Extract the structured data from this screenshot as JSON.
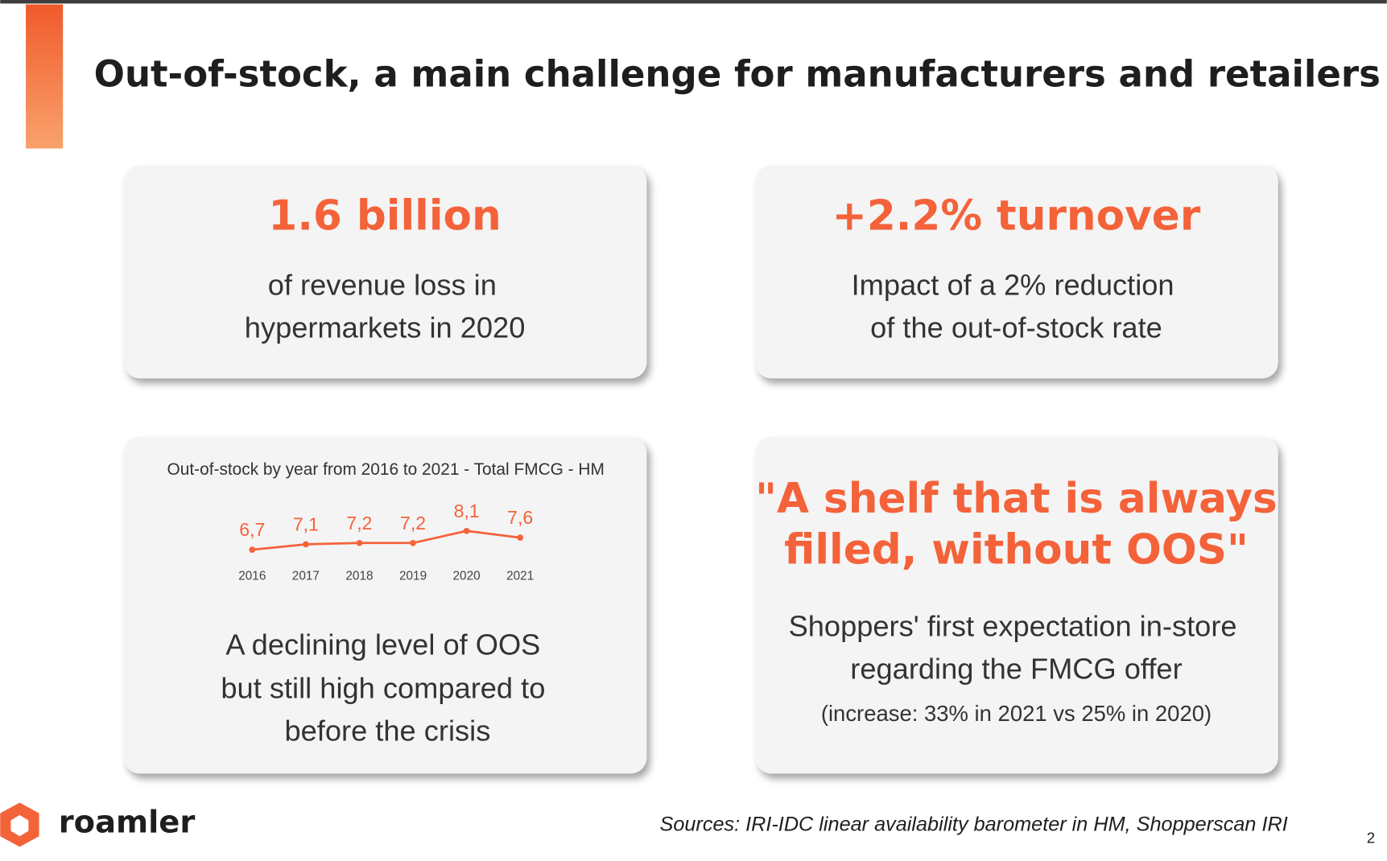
{
  "header": {
    "title": "Out-of-stock, a main challenge for manufacturers and retailers"
  },
  "cards": [
    {
      "headline": "1.6 billion",
      "lines": [
        "of revenue loss in",
        "hypermarkets in 2020"
      ]
    },
    {
      "headline": "+2.2% turnover",
      "lines": [
        "Impact of a 2% reduction",
        "of the out-of-stock rate"
      ]
    },
    {
      "chart_data": {
        "type": "line",
        "title": "Out-of-stock by year from 2016 to 2021 - Total FMCG - HM",
        "categories": [
          "2016",
          "2017",
          "2018",
          "2019",
          "2020",
          "2021"
        ],
        "values": [
          6.7,
          7.1,
          7.2,
          7.2,
          8.1,
          7.6
        ],
        "value_labels": [
          "6,7",
          "7,1",
          "7,2",
          "7,2",
          "8,1",
          "7,6"
        ],
        "color": "#f4623a",
        "ylim": [
          5.5,
          8.8
        ]
      },
      "lines": [
        "A declining level of OOS",
        "but still high compared to",
        "before the crisis"
      ]
    },
    {
      "headline_lines": [
        "\"A shelf that is always",
        "filled, without OOS\""
      ],
      "lines": [
        "Shoppers' first expectation in-store",
        "regarding the FMCG offer"
      ],
      "note": "(increase: 33% in 2021 vs 25% in 2020)"
    }
  ],
  "footer": {
    "logo": "roamler",
    "sources": "Sources: IRI-IDC linear availability barometer in HM, Shopperscan IRI",
    "page": "2"
  }
}
